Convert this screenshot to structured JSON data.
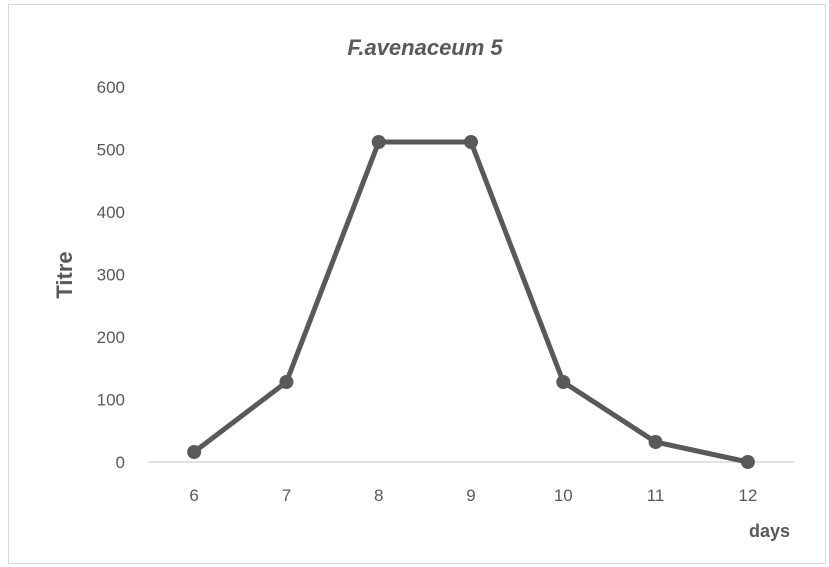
{
  "chart_data": {
    "type": "line",
    "title": "F.avenaceum 5",
    "xlabel": "days",
    "ylabel": "Titre",
    "categories": [
      "6",
      "7",
      "8",
      "9",
      "10",
      "11",
      "12"
    ],
    "series": [
      {
        "values": [
          16,
          128,
          512,
          512,
          128,
          32,
          0
        ]
      }
    ],
    "ylim": [
      0,
      600
    ],
    "yticks": [
      0,
      100,
      200,
      300,
      400,
      500,
      600
    ],
    "grid": false,
    "legend": "none",
    "line_color": "#595959",
    "marker_color": "#595959",
    "axis_color": "#d9d9d9"
  }
}
